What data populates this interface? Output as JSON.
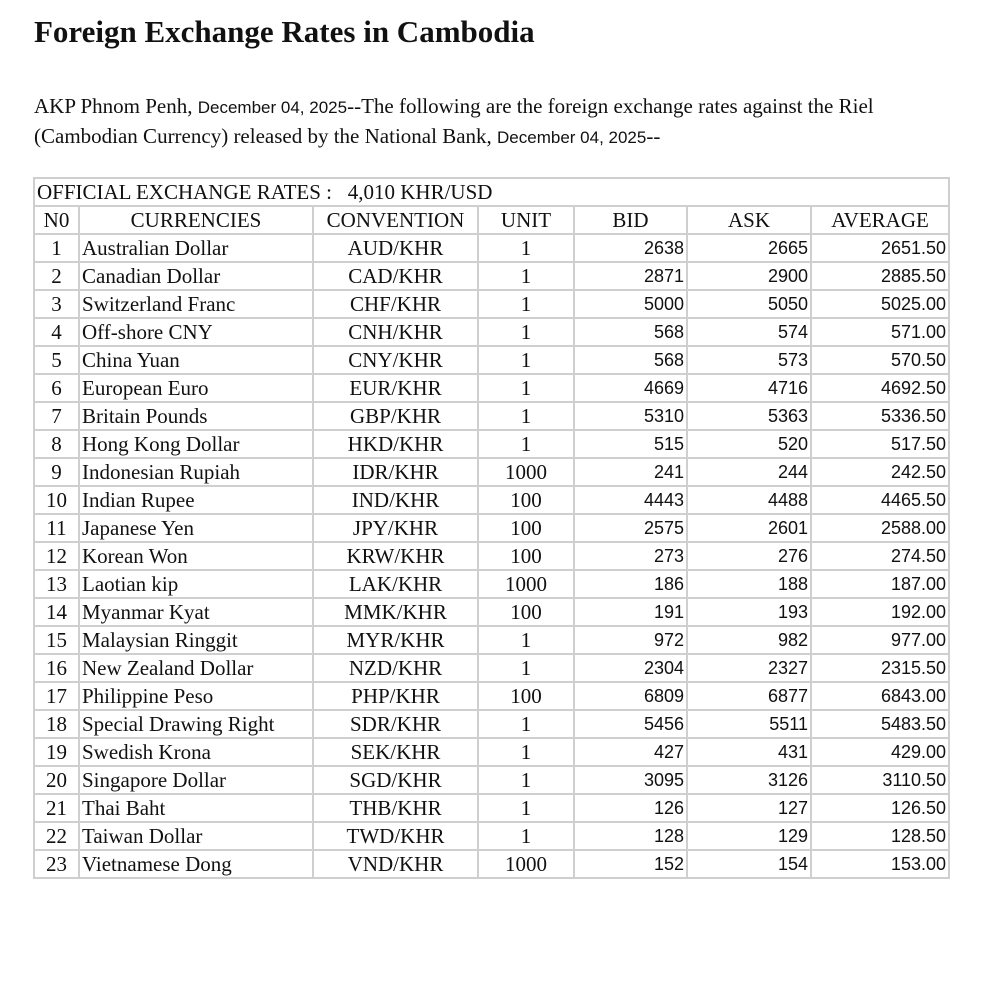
{
  "title": "Foreign Exchange Rates in Cambodia",
  "intro": {
    "prefix": "AKP Phnom Penh, ",
    "date1": "December 04, 2025",
    "middle": "--The following are the foreign exchange rates against the Riel (Cambodian Currency) released by the National Bank, ",
    "date2": "December 04, 2025",
    "suffix": "--"
  },
  "table": {
    "official_label": "OFFICIAL EXCHANGE RATES :   4,010 KHR/USD",
    "headers": [
      "N0",
      "CURRENCIES",
      "CONVENTION",
      "UNIT",
      "BID",
      "ASK",
      "AVERAGE"
    ],
    "rows": [
      [
        "1",
        "Australian Dollar",
        "AUD/KHR",
        "1",
        "2638",
        "2665",
        "2651.50"
      ],
      [
        "2",
        "Canadian Dollar",
        "CAD/KHR",
        "1",
        "2871",
        "2900",
        "2885.50"
      ],
      [
        "3",
        "Switzerland Franc",
        "CHF/KHR",
        "1",
        "5000",
        "5050",
        "5025.00"
      ],
      [
        "4",
        "Off-shore CNY",
        "CNH/KHR",
        "1",
        "568",
        "574",
        "571.00"
      ],
      [
        "5",
        "China Yuan",
        "CNY/KHR",
        "1",
        "568",
        "573",
        "570.50"
      ],
      [
        "6",
        "European Euro",
        "EUR/KHR",
        "1",
        "4669",
        "4716",
        "4692.50"
      ],
      [
        "7",
        "Britain Pounds",
        "GBP/KHR",
        "1",
        "5310",
        "5363",
        "5336.50"
      ],
      [
        "8",
        "Hong Kong Dollar",
        "HKD/KHR",
        "1",
        "515",
        "520",
        "517.50"
      ],
      [
        "9",
        "Indonesian Rupiah",
        "IDR/KHR",
        "1000",
        "241",
        "244",
        "242.50"
      ],
      [
        "10",
        "Indian Rupee",
        "IND/KHR",
        "100",
        "4443",
        "4488",
        "4465.50"
      ],
      [
        "11",
        "Japanese Yen",
        "JPY/KHR",
        "100",
        "2575",
        "2601",
        "2588.00"
      ],
      [
        "12",
        "Korean Won",
        "KRW/KHR",
        "100",
        "273",
        "276",
        "274.50"
      ],
      [
        "13",
        "Laotian kip",
        "LAK/KHR",
        "1000",
        "186",
        "188",
        "187.00"
      ],
      [
        "14",
        "Myanmar Kyat",
        "MMK/KHR",
        "100",
        "191",
        "193",
        "192.00"
      ],
      [
        "15",
        "Malaysian Ringgit",
        "MYR/KHR",
        "1",
        "972",
        "982",
        "977.00"
      ],
      [
        "16",
        "New Zealand Dollar",
        "NZD/KHR",
        "1",
        "2304",
        "2327",
        "2315.50"
      ],
      [
        "17",
        "Philippine Peso",
        "PHP/KHR",
        "100",
        "6809",
        "6877",
        "6843.00"
      ],
      [
        "18",
        "Special Drawing Right",
        "SDR/KHR",
        "1",
        "5456",
        "5511",
        "5483.50"
      ],
      [
        "19",
        "Swedish Krona",
        "SEK/KHR",
        "1",
        "427",
        "431",
        "429.00"
      ],
      [
        "20",
        "Singapore Dollar",
        "SGD/KHR",
        "1",
        "3095",
        "3126",
        "3110.50"
      ],
      [
        "21",
        "Thai Baht",
        "THB/KHR",
        "1",
        "126",
        "127",
        "126.50"
      ],
      [
        "22",
        "Taiwan Dollar",
        "TWD/KHR",
        "1",
        "128",
        "129",
        "128.50"
      ],
      [
        "23",
        "Vietnamese Dong",
        "VND/KHR",
        "1000",
        "152",
        "154",
        "153.00"
      ]
    ]
  }
}
